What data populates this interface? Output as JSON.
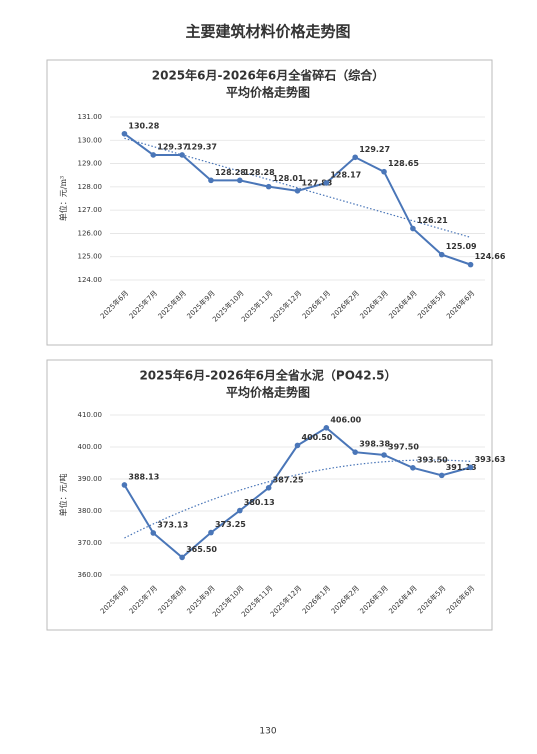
{
  "title": "主要建筑材料价格走势图",
  "page_number": "130",
  "chart_data": [
    {
      "type": "line",
      "title": "2025年6月-2026年6月全省碎石（综合）",
      "subtitle": "平均价格走势图",
      "y_label": "单位：元/m³",
      "categories": [
        "2025年6月",
        "2025年7月",
        "2025年8月",
        "2025年9月",
        "2025年10月",
        "2025年11月",
        "2025年12月",
        "2026年1月",
        "2026年2月",
        "2026年3月",
        "2026年4月",
        "2026年5月",
        "2026年6月"
      ],
      "values": [
        130.28,
        129.37,
        129.37,
        128.28,
        128.28,
        128.01,
        127.83,
        128.17,
        129.27,
        128.65,
        126.21,
        125.09,
        124.66
      ],
      "value_labels": [
        "130.28",
        "129.37",
        "129.37",
        "128.28",
        "128.28",
        "128.01",
        "127.83",
        "128.17",
        "129.27",
        "128.65",
        "126.21",
        "125.09",
        "124.66"
      ],
      "color": "#4a76b8",
      "trendline": "linear",
      "grid": true,
      "ylim": [
        124,
        131
      ],
      "yticks": [
        {
          "value": 124,
          "label": "124.00"
        },
        {
          "value": 125,
          "label": "125.00"
        },
        {
          "value": 126,
          "label": "126.00"
        },
        {
          "value": 127,
          "label": "127.00"
        },
        {
          "value": 128,
          "label": "128.00"
        },
        {
          "value": 129,
          "label": "129.00"
        },
        {
          "value": 130,
          "label": "130.00"
        },
        {
          "value": 131,
          "label": "131.00"
        }
      ]
    },
    {
      "type": "line",
      "title": "2025年6月-2026年6月全省水泥（PO42.5）",
      "subtitle": "平均价格走势图",
      "y_label": "单位：元/吨",
      "categories": [
        "2025年6月",
        "2025年7月",
        "2025年8月",
        "2025年9月",
        "2025年10月",
        "2025年11月",
        "2025年12月",
        "2026年1月",
        "2026年2月",
        "2026年3月",
        "2026年4月",
        "2026年5月",
        "2026年6月"
      ],
      "values": [
        388.13,
        373.13,
        365.5,
        373.25,
        380.13,
        387.25,
        400.5,
        406,
        398.38,
        397.5,
        393.5,
        391.13,
        393.63
      ],
      "value_labels": [
        "388.13",
        "373.13",
        "365.50",
        "373.25",
        "380.13",
        "387.25",
        "400.50",
        "406.00",
        "398.38",
        "397.50",
        "393.50",
        "391.13",
        "393.63"
      ],
      "color": "#4a76b8",
      "trendline": "polynomial",
      "grid": true,
      "ylim": [
        360,
        410
      ],
      "yticks": [
        {
          "value": 360,
          "label": "360.00"
        },
        {
          "value": 370,
          "label": "370.00"
        },
        {
          "value": 380,
          "label": "380.00"
        },
        {
          "value": 390,
          "label": "390.00"
        },
        {
          "value": 400,
          "label": "400.00"
        },
        {
          "value": 410,
          "label": "410.00"
        }
      ]
    }
  ]
}
